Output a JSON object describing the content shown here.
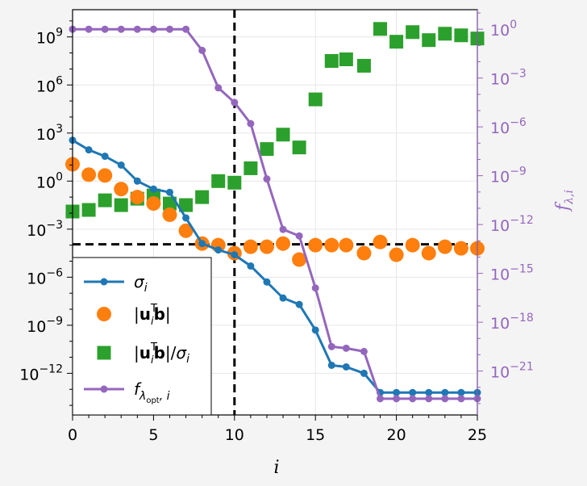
{
  "chart_data": {
    "type": "scatter",
    "x": [
      0,
      1,
      2,
      3,
      4,
      5,
      6,
      7,
      8,
      9,
      10,
      11,
      12,
      13,
      14,
      15,
      16,
      16.9,
      18,
      19,
      20,
      21,
      22,
      23,
      24,
      25
    ],
    "series": [
      {
        "name": "σ_i",
        "axis": "left",
        "style": "line-dot",
        "color": "#1f77b4",
        "log10_values": [
          2.55,
          1.95,
          1.55,
          1.0,
          0.0,
          -0.5,
          -0.7,
          -2.3,
          -3.9,
          -4.3,
          -4.6,
          -5.3,
          -6.3,
          -7.3,
          -7.7,
          -9.3,
          -11.5,
          -11.6,
          -12.0,
          -13.2,
          -13.2,
          -13.2,
          -13.2,
          -13.2,
          -13.2,
          -13.2
        ]
      },
      {
        "name": "|u_i^T b|",
        "axis": "left",
        "style": "circle",
        "color": "#ff7f0e",
        "log10_values": [
          1.05,
          0.4,
          0.35,
          -0.5,
          -1.0,
          -1.4,
          -2.1,
          -3.1,
          -3.9,
          -4.0,
          -4.5,
          -4.1,
          -4.1,
          -3.9,
          -4.9,
          -4.0,
          -4.0,
          -4.0,
          -4.5,
          -3.8,
          -4.6,
          -4.0,
          -4.5,
          -4.1,
          -4.2,
          -4.2
        ]
      },
      {
        "name": "|u_i^T b|/σ_i",
        "axis": "left",
        "style": "square",
        "color": "#2ca02c",
        "log10_values": [
          -1.9,
          -1.8,
          -1.2,
          -1.5,
          -1.1,
          -0.9,
          -1.4,
          -1.5,
          -1.0,
          0.0,
          -0.1,
          0.8,
          2.0,
          2.9,
          2.1,
          5.1,
          7.5,
          7.6,
          7.2,
          9.5,
          8.7,
          9.3,
          8.8,
          9.2,
          9.1,
          8.9
        ]
      },
      {
        "name": "f_{λopt,i}",
        "axis": "right",
        "style": "line-dot",
        "color": "#9467bd",
        "log10_values": [
          0,
          0,
          0,
          0,
          0,
          0,
          0,
          0,
          -1.3,
          -3.6,
          -4.5,
          -5.8,
          -9.2,
          -12.3,
          -12.7,
          -15.9,
          -19.5,
          -19.6,
          -19.8,
          -22.7,
          -22.7,
          -22.7,
          -22.7,
          -22.7,
          -22.7,
          -22.7
        ]
      }
    ],
    "xlim": [
      0,
      25
    ],
    "ylim_left_log10": [
      -14.6,
      10.7
    ],
    "ylim_right_log10": [
      -23.7,
      1.2
    ],
    "xticks": [
      "0",
      "5",
      "10",
      "15",
      "20",
      "25"
    ],
    "xlabel": "i",
    "ylabel_right": "f_{λ,i}",
    "left_yticks_exp": [
      "9",
      "6",
      "3",
      "0",
      "-3",
      "-6",
      "-9",
      "-12"
    ],
    "right_yticks_exp": [
      "0",
      "-3",
      "-6",
      "-9",
      "-12",
      "-15",
      "-18",
      "-21"
    ],
    "vline_x": 10,
    "hline_log10_left": -3.95,
    "legend": {
      "placement": "lower-left",
      "entries": [
        "σ_i",
        "|u_i^T b|",
        "|u_i^T b|/σ_i",
        "f_{λopt,i}"
      ]
    },
    "grid": true,
    "yscale": "log"
  }
}
